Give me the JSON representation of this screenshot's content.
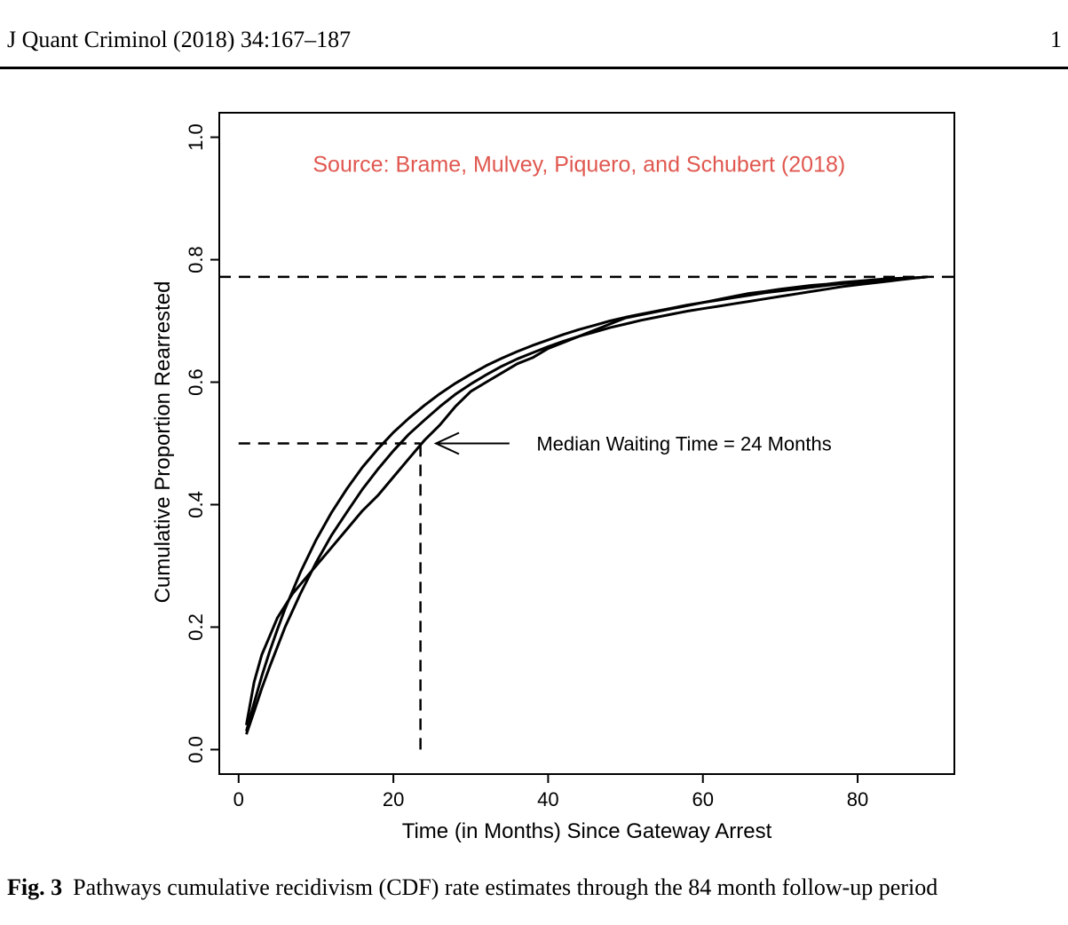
{
  "page": {
    "running_head": "J Quant Criminol (2018) 34:167–187",
    "page_number": "1",
    "caption_label": "Fig. 3",
    "caption_text": "Pathways cumulative recidivism (CDF) rate estimates through the 84 month follow-up period"
  },
  "chart_data": {
    "type": "line",
    "title": "",
    "xlabel": "Time (in Months) Since Gateway Arrest",
    "ylabel": "Cumulative Proportion Rearrested",
    "xlim": [
      -2.5,
      92.5
    ],
    "ylim": [
      -0.04,
      1.04
    ],
    "x_ticks": [
      0,
      20,
      40,
      60,
      80
    ],
    "y_ticks": [
      0.0,
      0.2,
      0.4,
      0.6,
      0.8,
      1.0
    ],
    "x_tick_labels": [
      "0",
      "20",
      "40",
      "60",
      "80"
    ],
    "y_tick_labels": [
      "0.0",
      "0.2",
      "0.4",
      "0.6",
      "0.8",
      "1.0"
    ],
    "grid": false,
    "line_color": "#000000",
    "series": [
      {
        "x": [
          1,
          2,
          3,
          4,
          5,
          6,
          7,
          8,
          10,
          12,
          14,
          16,
          18,
          20,
          22,
          24,
          26,
          28,
          30,
          32,
          34,
          36,
          38,
          40,
          42,
          44,
          46,
          48,
          50,
          52,
          54,
          56,
          58,
          60,
          62,
          64,
          66,
          68,
          70,
          72,
          74,
          76,
          78,
          80,
          82,
          84,
          86,
          88,
          89
        ],
        "y": [
          0.04,
          0.11,
          0.155,
          0.185,
          0.215,
          0.235,
          0.255,
          0.27,
          0.3,
          0.33,
          0.36,
          0.39,
          0.415,
          0.445,
          0.475,
          0.505,
          0.53,
          0.56,
          0.585,
          0.6,
          0.615,
          0.63,
          0.64,
          0.655,
          0.665,
          0.675,
          0.685,
          0.695,
          0.705,
          0.71,
          0.715,
          0.72,
          0.725,
          0.73,
          0.735,
          0.74,
          0.745,
          0.748,
          0.752,
          0.755,
          0.758,
          0.76,
          0.763,
          0.765,
          0.767,
          0.769,
          0.77,
          0.771,
          0.772
        ]
      },
      {
        "x": [
          1,
          2,
          3,
          4,
          5,
          6,
          8,
          10,
          12,
          14,
          16,
          18,
          20,
          22,
          24,
          26,
          28,
          30,
          32,
          34,
          36,
          38,
          40,
          42,
          44,
          46,
          48,
          50,
          52,
          54,
          56,
          58,
          60,
          62,
          64,
          66,
          68,
          70,
          72,
          74,
          76,
          78,
          80,
          82,
          84,
          86,
          88,
          89
        ],
        "y": [
          0.03,
          0.076,
          0.12,
          0.16,
          0.196,
          0.23,
          0.29,
          0.342,
          0.387,
          0.426,
          0.461,
          0.491,
          0.518,
          0.541,
          0.562,
          0.581,
          0.598,
          0.613,
          0.627,
          0.639,
          0.65,
          0.66,
          0.669,
          0.678,
          0.686,
          0.693,
          0.7,
          0.706,
          0.711,
          0.716,
          0.721,
          0.726,
          0.73,
          0.734,
          0.738,
          0.742,
          0.746,
          0.749,
          0.752,
          0.755,
          0.758,
          0.761,
          0.763,
          0.765,
          0.767,
          0.769,
          0.771,
          0.772
        ]
      },
      {
        "x": [
          1,
          2,
          3,
          4,
          6,
          8,
          10,
          12,
          14,
          16,
          18,
          20,
          22,
          24,
          26,
          28,
          30,
          32,
          34,
          36,
          38,
          40,
          42,
          44,
          46,
          48,
          50,
          52,
          54,
          56,
          58,
          60,
          62,
          64,
          66,
          68,
          70,
          72,
          74,
          76,
          78,
          80,
          82,
          84,
          86,
          88,
          89
        ],
        "y": [
          0.025,
          0.062,
          0.1,
          0.135,
          0.2,
          0.255,
          0.305,
          0.35,
          0.388,
          0.425,
          0.458,
          0.488,
          0.515,
          0.538,
          0.56,
          0.58,
          0.597,
          0.612,
          0.626,
          0.638,
          0.648,
          0.658,
          0.667,
          0.675,
          0.682,
          0.689,
          0.695,
          0.701,
          0.706,
          0.711,
          0.716,
          0.72,
          0.724,
          0.728,
          0.732,
          0.736,
          0.74,
          0.744,
          0.748,
          0.752,
          0.756,
          0.759,
          0.762,
          0.765,
          0.768,
          0.771,
          0.772
        ]
      }
    ],
    "reference_lines": [
      {
        "orientation": "horizontal",
        "y": 0.772,
        "x_from": -2.5,
        "x_to": 92.5,
        "style": "dashed"
      },
      {
        "orientation": "horizontal",
        "y": 0.5,
        "x_from": 0,
        "x_to": 23.5,
        "style": "dashed"
      },
      {
        "orientation": "vertical",
        "x": 23.5,
        "y_from": 0.0,
        "y_to": 0.5,
        "style": "dashed"
      }
    ],
    "annotations": [
      {
        "text": "Source: Brame, Mulvey, Piquero, and Schubert (2018)",
        "x": 44,
        "y": 0.955,
        "color": "#e0574f",
        "align": "middle"
      },
      {
        "text": "Median Waiting Time = 24 Months",
        "x": 38.5,
        "y": 0.5,
        "color": "#000000",
        "align": "start"
      }
    ],
    "arrow": {
      "from_x": 35,
      "to_x": 25.5,
      "y": 0.5
    }
  }
}
